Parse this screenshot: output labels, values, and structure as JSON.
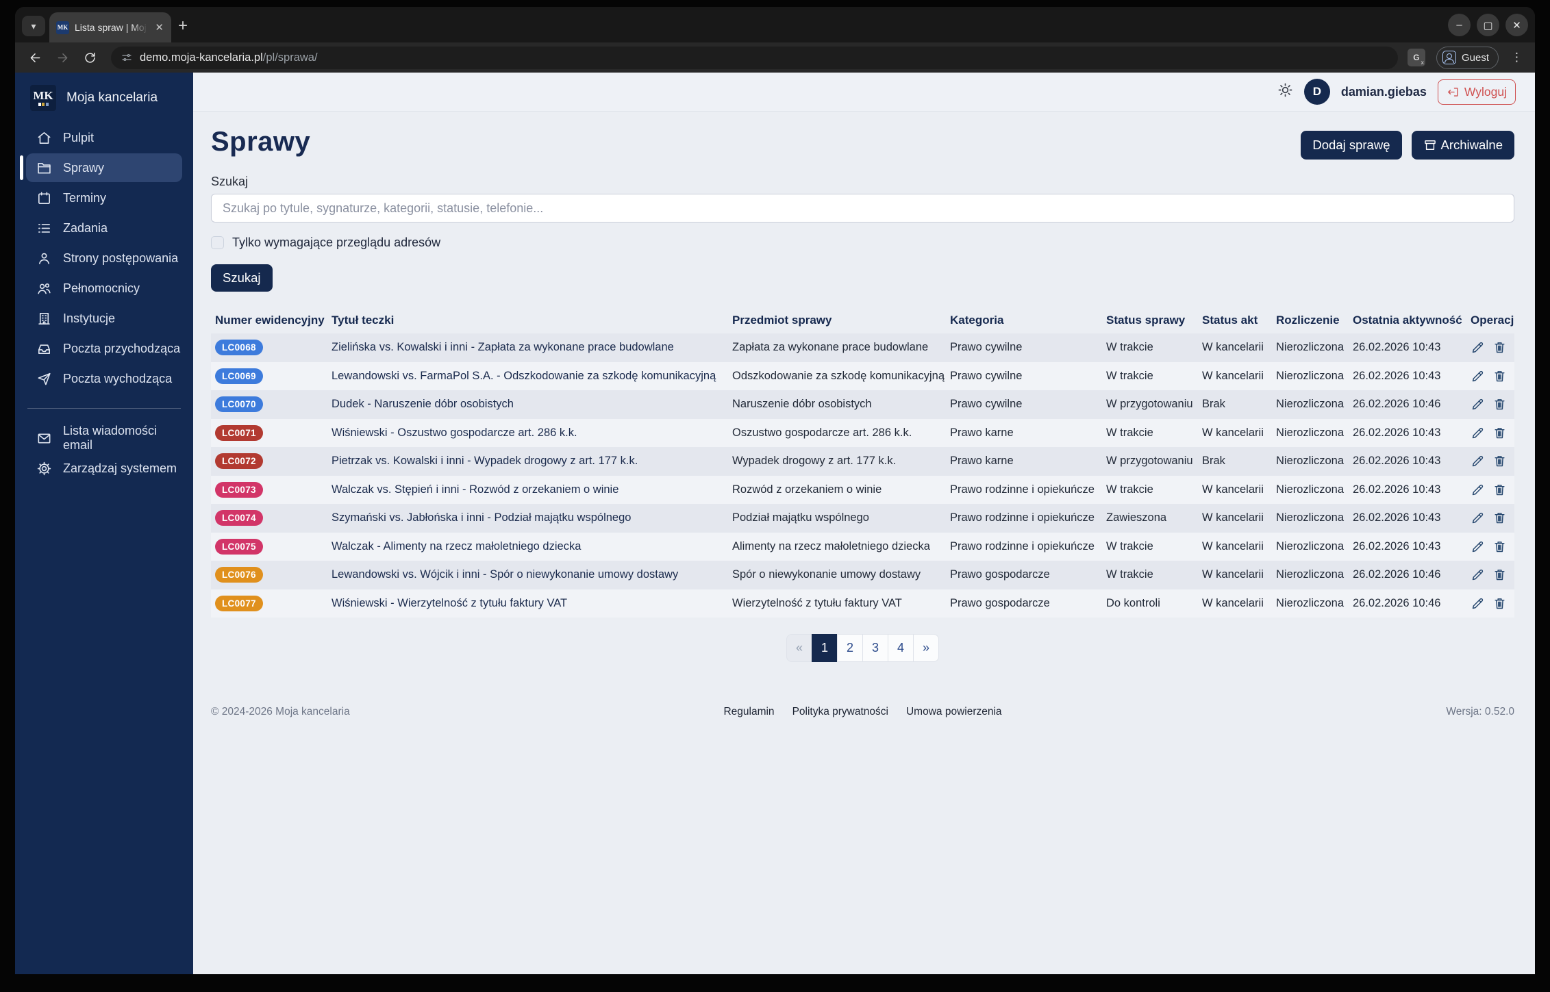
{
  "browser": {
    "tab_title": "Lista spraw | Moja kancel",
    "tab_close": "✕",
    "new_tab": "+",
    "url_host": "demo.moja-kancelaria.pl",
    "url_path": "pl/sprawa/",
    "guest_label": "Guest",
    "window_controls": {
      "minimize": "–",
      "maximize": "▢",
      "close": "✕"
    }
  },
  "sidebar": {
    "brand": "Moja kancelaria",
    "logo_text": "MK",
    "items": [
      {
        "label": "Pulpit",
        "icon": "home-icon",
        "active": false
      },
      {
        "label": "Sprawy",
        "icon": "folder-icon",
        "active": true
      },
      {
        "label": "Terminy",
        "icon": "calendar-icon",
        "active": false
      },
      {
        "label": "Zadania",
        "icon": "tasks-icon",
        "active": false
      },
      {
        "label": "Strony postępowania",
        "icon": "person-icon",
        "active": false
      },
      {
        "label": "Pełnomocnicy",
        "icon": "people-icon",
        "active": false
      },
      {
        "label": "Instytucje",
        "icon": "building-icon",
        "active": false
      },
      {
        "label": "Poczta przychodząca",
        "icon": "inbox-icon",
        "active": false
      },
      {
        "label": "Poczta wychodząca",
        "icon": "send-icon",
        "active": false
      }
    ],
    "items_bottom": [
      {
        "label": "Lista wiadomości email",
        "icon": "envelope-icon",
        "active": false
      },
      {
        "label": "Zarządzaj systemem",
        "icon": "gear-icon",
        "active": false
      }
    ]
  },
  "appbar": {
    "theme_icon": "sun-icon",
    "avatar_initial": "D",
    "username": "damian.giebas",
    "logout_label": "Wyloguj",
    "logout_icon": "logout-icon"
  },
  "page": {
    "title": "Sprawy",
    "add_button": "Dodaj sprawę",
    "archive_button": "Archiwalne",
    "archive_icon": "archive-icon",
    "search_label": "Szukaj",
    "search_placeholder": "Szukaj po tytule, sygnaturze, kategorii, statusie, telefonie...",
    "checkbox_label": "Tylko wymagające przeglądu adresów",
    "checkbox_checked": false,
    "search_button": "Szukaj"
  },
  "table": {
    "headers": [
      "Numer ewidencyjny",
      "Tytuł teczki",
      "Przedmiot sprawy",
      "Kategoria",
      "Status sprawy",
      "Status akt",
      "Rozliczenie",
      "Ostatnia aktywność",
      "Operacje"
    ],
    "operation_icons": [
      "pencil-icon",
      "trash-icon",
      "users-icon",
      "eye-icon"
    ],
    "badge_colors": {
      "blue": "#3d7bdc",
      "red": "#b23a31",
      "pink": "#d23568",
      "orange": "#e0901d"
    },
    "rows": [
      {
        "id": "LC0068",
        "badge": "blue",
        "title": "Zielińska vs. Kowalski i inni - Zapłata za wykonane prace budowlane",
        "subject": "Zapłata za wykonane prace budowlane",
        "category": "Prawo cywilne",
        "status": "W trakcie",
        "files": "W kancelarii",
        "billing": "Nierozliczona",
        "activity": "26.02.2026 10:43"
      },
      {
        "id": "LC0069",
        "badge": "blue",
        "title": "Lewandowski vs. FarmaPol S.A. - Odszkodowanie za szkodę komunikacyjną",
        "subject": "Odszkodowanie za szkodę komunikacyjną",
        "category": "Prawo cywilne",
        "status": "W trakcie",
        "files": "W kancelarii",
        "billing": "Nierozliczona",
        "activity": "26.02.2026 10:43"
      },
      {
        "id": "LC0070",
        "badge": "blue",
        "title": "Dudek - Naruszenie dóbr osobistych",
        "subject": "Naruszenie dóbr osobistych",
        "category": "Prawo cywilne",
        "status": "W przygotowaniu",
        "files": "Brak",
        "billing": "Nierozliczona",
        "activity": "26.02.2026 10:46"
      },
      {
        "id": "LC0071",
        "badge": "red",
        "title": "Wiśniewski - Oszustwo gospodarcze art. 286 k.k.",
        "subject": "Oszustwo gospodarcze art. 286 k.k.",
        "category": "Prawo karne",
        "status": "W trakcie",
        "files": "W kancelarii",
        "billing": "Nierozliczona",
        "activity": "26.02.2026 10:43"
      },
      {
        "id": "LC0072",
        "badge": "red",
        "title": "Pietrzak vs. Kowalski i inni - Wypadek drogowy z art. 177 k.k.",
        "subject": "Wypadek drogowy z art. 177 k.k.",
        "category": "Prawo karne",
        "status": "W przygotowaniu",
        "files": "Brak",
        "billing": "Nierozliczona",
        "activity": "26.02.2026 10:43"
      },
      {
        "id": "LC0073",
        "badge": "pink",
        "title": "Walczak vs. Stępień i inni - Rozwód z orzekaniem o winie",
        "subject": "Rozwód z orzekaniem o winie",
        "category": "Prawo rodzinne i opiekuńcze",
        "status": "W trakcie",
        "files": "W kancelarii",
        "billing": "Nierozliczona",
        "activity": "26.02.2026 10:43"
      },
      {
        "id": "LC0074",
        "badge": "pink",
        "title": "Szymański vs. Jabłońska i inni - Podział majątku wspólnego",
        "subject": "Podział majątku wspólnego",
        "category": "Prawo rodzinne i opiekuńcze",
        "status": "Zawieszona",
        "files": "W kancelarii",
        "billing": "Nierozliczona",
        "activity": "26.02.2026 10:43"
      },
      {
        "id": "LC0075",
        "badge": "pink",
        "title": "Walczak - Alimenty na rzecz małoletniego dziecka",
        "subject": "Alimenty na rzecz małoletniego dziecka",
        "category": "Prawo rodzinne i opiekuńcze",
        "status": "W trakcie",
        "files": "W kancelarii",
        "billing": "Nierozliczona",
        "activity": "26.02.2026 10:43"
      },
      {
        "id": "LC0076",
        "badge": "orange",
        "title": "Lewandowski vs. Wójcik i inni - Spór o niewykonanie umowy dostawy",
        "subject": "Spór o niewykonanie umowy dostawy",
        "category": "Prawo gospodarcze",
        "status": "W trakcie",
        "files": "W kancelarii",
        "billing": "Nierozliczona",
        "activity": "26.02.2026 10:46"
      },
      {
        "id": "LC0077",
        "badge": "orange",
        "title": "Wiśniewski - Wierzytelność z tytułu faktury VAT",
        "subject": "Wierzytelność z tytułu faktury VAT",
        "category": "Prawo gospodarcze",
        "status": "Do kontroli",
        "files": "W kancelarii",
        "billing": "Nierozliczona",
        "activity": "26.02.2026 10:46"
      }
    ]
  },
  "pagination": {
    "items": [
      {
        "label": "«",
        "state": "disabled"
      },
      {
        "label": "1",
        "state": "active"
      },
      {
        "label": "2",
        "state": ""
      },
      {
        "label": "3",
        "state": ""
      },
      {
        "label": "4",
        "state": ""
      },
      {
        "label": "»",
        "state": ""
      }
    ]
  },
  "footer": {
    "copyright": "© 2024-2026 Moja kancelaria",
    "links": [
      "Regulamin",
      "Polityka prywatności",
      "Umowa powierzenia"
    ],
    "version": "Wersja: 0.52.0"
  },
  "colors": {
    "sidebar": "#132951",
    "sidebar_active": "#2e4571",
    "accent_navy": "#15294e",
    "logout_red": "#cf5050",
    "page_bg": "#ebeef3"
  }
}
